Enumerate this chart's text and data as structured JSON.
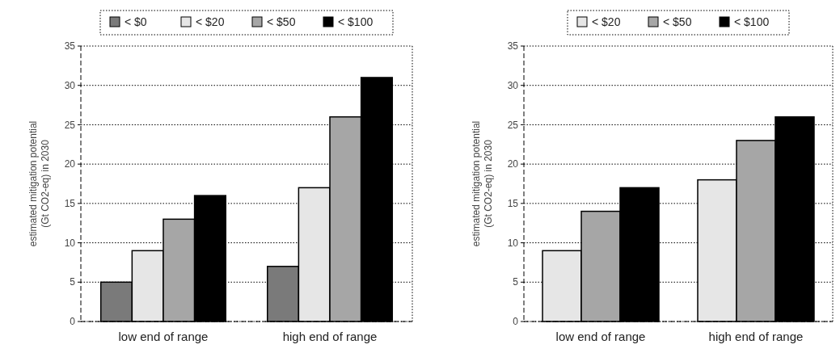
{
  "chart_data": [
    {
      "type": "bar",
      "categories": [
        "low end of range",
        "high end of range"
      ],
      "ylabel": "estimated mitigation potential\n(Gt CO2-eq) in 2030",
      "ylim": [
        0,
        35
      ],
      "yticks": [
        0,
        5,
        10,
        15,
        20,
        25,
        30,
        35
      ],
      "grid": "y",
      "legend": "top",
      "series": [
        {
          "name": "< $0",
          "color": "#7a7a7a",
          "values": [
            5,
            7
          ]
        },
        {
          "name": "< $20",
          "color": "#e6e6e6",
          "values": [
            9,
            17
          ]
        },
        {
          "name": "< $50",
          "color": "#a6a6a6",
          "values": [
            13,
            26
          ]
        },
        {
          "name": "< $100",
          "color": "#000000",
          "values": [
            16,
            31
          ]
        }
      ]
    },
    {
      "type": "bar",
      "categories": [
        "low end of range",
        "high end of range"
      ],
      "ylabel": "estimated mitigation potential\n(Gt CO2-eq) in 2030",
      "ylim": [
        0,
        35
      ],
      "yticks": [
        0,
        5,
        10,
        15,
        20,
        25,
        30,
        35
      ],
      "grid": "y",
      "legend": "top",
      "series": [
        {
          "name": "< $20",
          "color": "#e6e6e6",
          "values": [
            9,
            18
          ]
        },
        {
          "name": "< $50",
          "color": "#a6a6a6",
          "values": [
            14,
            23
          ]
        },
        {
          "name": "< $100",
          "color": "#000000",
          "values": [
            17,
            26
          ]
        }
      ]
    }
  ]
}
